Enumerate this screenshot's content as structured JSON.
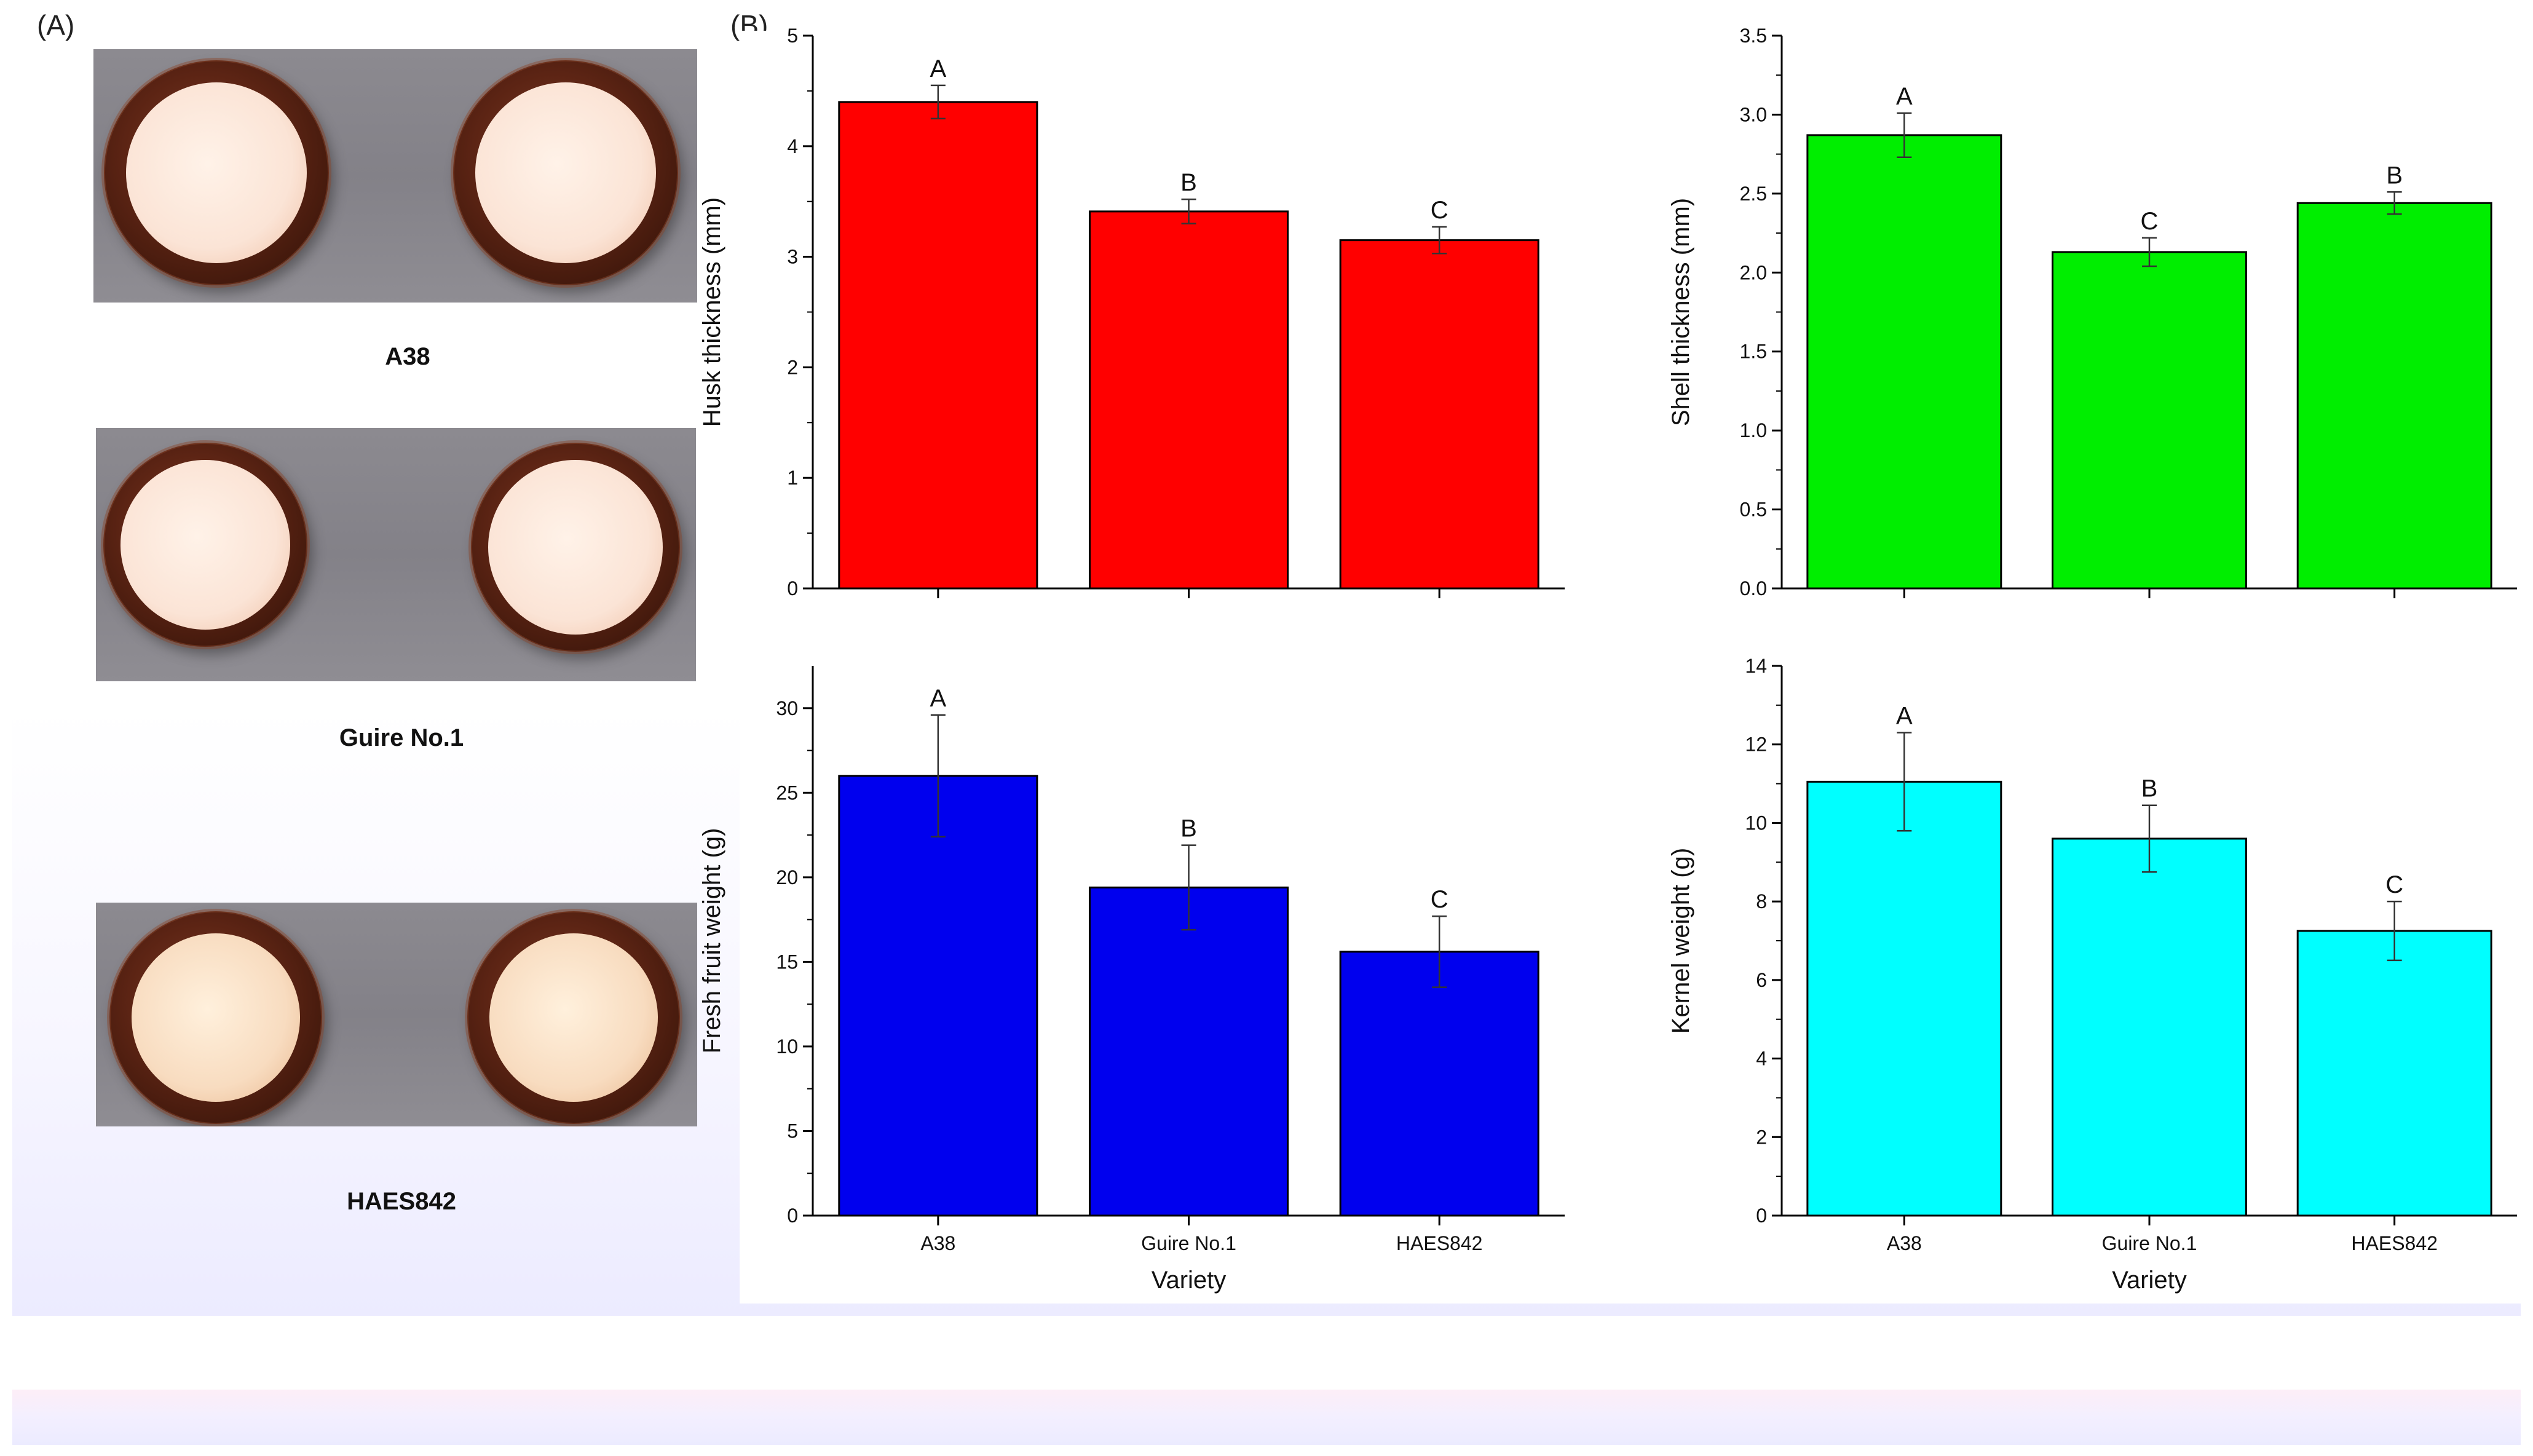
{
  "panel_a": {
    "letter": "(A)",
    "labels": [
      "A38",
      "Guire No.1",
      "HAES842"
    ]
  },
  "panel_b": {
    "letter": "(B)"
  },
  "colors": {
    "husk": "#ff0000",
    "shell": "#00ee00",
    "fresh": "#0000ee",
    "kernel": "#00ffff"
  },
  "chart_data": [
    {
      "type": "bar",
      "id": "husk",
      "categories": [
        "A38",
        "Guire No.1",
        "HAES842"
      ],
      "values": [
        4.4,
        3.41,
        3.15
      ],
      "errors": [
        0.15,
        0.11,
        0.12
      ],
      "significance": [
        "A",
        "B",
        "C"
      ],
      "ylabel": "Husk thickness (mm)",
      "xlabel": "",
      "ylim": [
        0,
        5
      ],
      "yticks": [
        "0",
        "1",
        "2",
        "3",
        "4",
        "5"
      ],
      "show_xticklabels": false,
      "color": "#ff0000"
    },
    {
      "type": "bar",
      "id": "shell",
      "categories": [
        "A38",
        "Guire No.1",
        "HAES842"
      ],
      "values": [
        2.87,
        2.13,
        2.44
      ],
      "errors": [
        0.14,
        0.09,
        0.07
      ],
      "significance": [
        "A",
        "C",
        "B"
      ],
      "ylabel": "Shell thickness (mm)",
      "xlabel": "",
      "ylim": [
        0,
        3.5
      ],
      "yticks": [
        "0.0",
        "0.5",
        "1.0",
        "1.5",
        "2.0",
        "2.5",
        "3.0",
        "3.5"
      ],
      "show_xticklabels": false,
      "color": "#00ee00"
    },
    {
      "type": "bar",
      "id": "fresh",
      "categories": [
        "A38",
        "Guire No.1",
        "HAES842"
      ],
      "values": [
        26.0,
        19.4,
        15.6
      ],
      "errors": [
        3.6,
        2.5,
        2.1
      ],
      "significance": [
        "A",
        "B",
        "C"
      ],
      "ylabel": "Fresh fruit weight (g)",
      "xlabel": "Variety",
      "ylim": [
        0,
        32.5
      ],
      "yticks": [
        "0",
        "5",
        "10",
        "15",
        "20",
        "25",
        "30"
      ],
      "show_xticklabels": true,
      "color": "#0000ee"
    },
    {
      "type": "bar",
      "id": "kernel",
      "categories": [
        "A38",
        "Guire No.1",
        "HAES842"
      ],
      "values": [
        11.05,
        9.6,
        7.25
      ],
      "errors": [
        1.25,
        0.85,
        0.75
      ],
      "significance": [
        "A",
        "B",
        "C"
      ],
      "ylabel": "Kernel weight (g)",
      "xlabel": "Variety",
      "ylim": [
        0,
        14
      ],
      "yticks": [
        "0",
        "2",
        "4",
        "6",
        "8",
        "10",
        "12",
        "14"
      ],
      "show_xticklabels": true,
      "color": "#00ffff"
    }
  ]
}
